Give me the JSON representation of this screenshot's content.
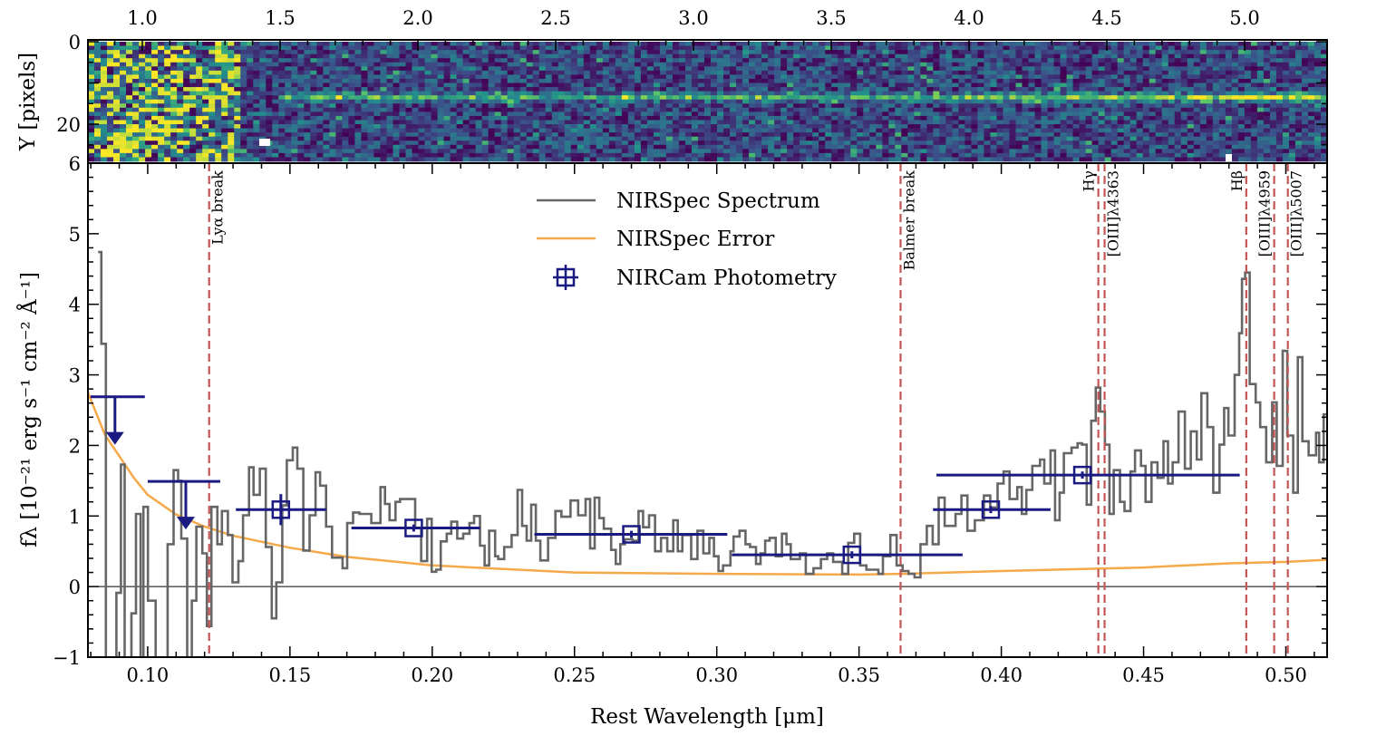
{
  "chart_data": [
    {
      "type": "heatmap",
      "panel": "2D spectrum",
      "ylabel": "Y [pixels]",
      "ylim": [
        0,
        29
      ],
      "y_inverted": true,
      "yticks": [
        "0",
        "20"
      ],
      "top_axis_ticks": [
        "1.0",
        "1.5",
        "2.0",
        "2.5",
        "3.0",
        "3.5",
        "4.0",
        "4.5",
        "5.0"
      ],
      "colormap": "viridis"
    },
    {
      "type": "line",
      "panel": "1D spectrum",
      "xlabel": "Rest Wavelength [μm]",
      "ylabel": "fλ [10⁻²¹ erg s⁻¹ cm⁻² Å⁻¹]",
      "xlim": [
        0.079,
        0.5145
      ],
      "ylim": [
        -1,
        6
      ],
      "xticks": [
        "0.10",
        "0.15",
        "0.20",
        "0.25",
        "0.30",
        "0.35",
        "0.40",
        "0.45",
        "0.50"
      ],
      "yticks": [
        "−1",
        "0",
        "1",
        "2",
        "3",
        "4",
        "5",
        "6"
      ],
      "legend": {
        "placement": "top-center",
        "entries": [
          "NIRSpec Spectrum",
          "NIRSpec Error",
          "NIRCam Photometry"
        ]
      },
      "colors": {
        "spectrum": "#666666",
        "error": "#f5a94a",
        "photometry": "#1a1a82",
        "lines": "#c45555"
      },
      "spectrum": {
        "name": "NIRSpec Spectrum",
        "x": [
          0.0826,
          0.0837,
          0.0853,
          0.089,
          0.0906,
          0.0919,
          0.0943,
          0.0959,
          0.0975,
          0.0985,
          0.1001,
          0.1028,
          0.107,
          0.1091,
          0.1107,
          0.1118,
          0.1139,
          0.1155,
          0.1171,
          0.1192,
          0.1208,
          0.1224,
          0.1245,
          0.1261,
          0.1282,
          0.1298,
          0.1319,
          0.1335,
          0.1356,
          0.1372,
          0.1394,
          0.1415,
          0.1436,
          0.1452,
          0.1473,
          0.1489,
          0.151,
          0.1526,
          0.1547,
          0.1569,
          0.159,
          0.1606,
          0.1627,
          0.1648,
          0.1685,
          0.1701,
          0.1722,
          0.1744,
          0.1786,
          0.1818,
          0.1834,
          0.185,
          0.1871,
          0.1887,
          0.194,
          0.1961,
          0.1982,
          0.1998,
          0.2014,
          0.203,
          0.2051,
          0.2067,
          0.2088,
          0.2109,
          0.2131,
          0.2147,
          0.2168,
          0.2184,
          0.22,
          0.2221,
          0.2232,
          0.2253,
          0.2279,
          0.23,
          0.2316,
          0.2332,
          0.2348,
          0.2364,
          0.238,
          0.2407,
          0.2433,
          0.2454,
          0.2486,
          0.2513,
          0.2539,
          0.2555,
          0.2571,
          0.2587,
          0.2603,
          0.2629,
          0.2645,
          0.2661,
          0.2677,
          0.2704,
          0.2725,
          0.2741,
          0.2762,
          0.2783,
          0.2804,
          0.2826,
          0.2847,
          0.2863,
          0.2879,
          0.291,
          0.2932,
          0.2953,
          0.2974,
          0.299,
          0.3006,
          0.3022,
          0.3048,
          0.3059,
          0.308,
          0.3101,
          0.3117,
          0.3138,
          0.3154,
          0.317,
          0.3186,
          0.3207,
          0.3229,
          0.3245,
          0.326,
          0.3292,
          0.3313,
          0.334,
          0.3366,
          0.3388,
          0.3409,
          0.3441,
          0.3462,
          0.3483,
          0.3504,
          0.3526,
          0.3568,
          0.3584,
          0.361,
          0.3632,
          0.3653,
          0.3674,
          0.3695,
          0.3716,
          0.3738,
          0.3759,
          0.378,
          0.3801,
          0.3823,
          0.3839,
          0.386,
          0.3881,
          0.3907,
          0.3939,
          0.3961,
          0.3987,
          0.4008,
          0.4029,
          0.4056,
          0.4072,
          0.4088,
          0.4109,
          0.4136,
          0.4151,
          0.4173,
          0.4189,
          0.4205,
          0.422,
          0.4247,
          0.4268,
          0.4284,
          0.43,
          0.4316,
          0.4332,
          0.4348,
          0.4364,
          0.438,
          0.4395,
          0.4417,
          0.4433,
          0.4454,
          0.447,
          0.4491,
          0.4507,
          0.4528,
          0.4549,
          0.457,
          0.4586,
          0.4602,
          0.4623,
          0.4645,
          0.4666,
          0.4687,
          0.4703,
          0.4724,
          0.4745,
          0.4767,
          0.4783,
          0.4798,
          0.482,
          0.4836,
          0.4846,
          0.4857,
          0.4873,
          0.4894,
          0.491,
          0.4931,
          0.4952,
          0.4968,
          0.4989,
          0.5005,
          0.5026,
          0.5042,
          0.5058,
          0.508,
          0.5106,
          0.5117,
          0.5133,
          0.515
        ],
        "y": [
          4.74,
          3.44,
          -1.2,
          -0.09,
          1.73,
          -1.2,
          -0.38,
          1.03,
          -1.2,
          1.13,
          -0.2,
          -1.2,
          0.6,
          1.65,
          1.5,
          0.68,
          -1.2,
          -0.2,
          0.85,
          0.47,
          -0.56,
          1.13,
          0.6,
          1.07,
          0.73,
          0.06,
          0.36,
          1.01,
          1.69,
          1.3,
          1.67,
          0.56,
          -0.45,
          0.06,
          1.15,
          1.79,
          1.97,
          1.67,
          0.51,
          1.01,
          1.62,
          1.43,
          0.85,
          0.41,
          0.26,
          0.9,
          1.05,
          1.03,
          0.9,
          1.41,
          1.17,
          0.94,
          1.2,
          1.24,
          0.83,
          0.36,
          0.96,
          0.21,
          0.24,
          0.64,
          0.75,
          0.92,
          0.68,
          0.75,
          0.9,
          1.0,
          0.58,
          0.3,
          0.79,
          0.43,
          0.39,
          0.56,
          0.73,
          1.37,
          0.86,
          0.65,
          1.16,
          0.65,
          0.37,
          0.69,
          1.07,
          0.99,
          1.22,
          1.01,
          1.24,
          0.54,
          1.26,
          0.97,
          0.82,
          0.52,
          0.32,
          0.6,
          0.67,
          0.65,
          1.07,
          0.84,
          1.01,
          0.5,
          0.69,
          0.5,
          0.94,
          0.5,
          0.73,
          0.39,
          0.79,
          0.47,
          0.69,
          0.43,
          0.22,
          0.3,
          0.5,
          0.71,
          0.79,
          0.6,
          0.56,
          0.32,
          0.47,
          0.65,
          0.69,
          0.43,
          0.75,
          0.6,
          0.39,
          0.47,
          0.18,
          0.26,
          0.39,
          0.47,
          0.35,
          0.18,
          0.62,
          0.75,
          0.3,
          0.24,
          0.18,
          0.43,
          0.73,
          0.3,
          0.22,
          0.18,
          0.13,
          0.6,
          0.86,
          0.6,
          1.26,
          0.86,
          0.86,
          1.03,
          1.29,
          0.79,
          0.94,
          1.29,
          1.12,
          1.46,
          1.63,
          1.24,
          1.41,
          1.03,
          1.37,
          1.71,
          1.8,
          1.46,
          1.93,
          0.94,
          1.33,
          1.89,
          1.97,
          2.03,
          2.01,
          1.16,
          2.35,
          2.82,
          2.48,
          2.01,
          1.03,
          1.65,
          1.2,
          1.07,
          1.63,
          1.93,
          1.71,
          1.2,
          1.76,
          1.54,
          2.06,
          1.46,
          1.76,
          2.48,
          1.67,
          2.2,
          1.8,
          2.74,
          2.26,
          1.33,
          2.01,
          2.53,
          2.14,
          3.0,
          3.59,
          4.36,
          4.45,
          2.87,
          2.61,
          2.26,
          1.76,
          2.61,
          1.71,
          3.34,
          2.14,
          1.33,
          3.25,
          2.06,
          1.86,
          2.18,
          1.76,
          2.44,
          2.44
        ]
      },
      "error": {
        "name": "NIRSpec Error",
        "x": [
          0.079,
          0.085,
          0.09,
          0.095,
          0.1,
          0.11,
          0.12,
          0.13,
          0.15,
          0.17,
          0.2,
          0.25,
          0.3,
          0.35,
          0.365,
          0.4,
          0.45,
          0.48,
          0.5,
          0.5145
        ],
        "y": [
          2.75,
          2.15,
          1.85,
          1.55,
          1.3,
          1.02,
          0.85,
          0.72,
          0.55,
          0.42,
          0.3,
          0.2,
          0.18,
          0.17,
          0.18,
          0.22,
          0.27,
          0.33,
          0.35,
          0.38
        ]
      },
      "photometry": {
        "name": "NIRCam Photometry",
        "points": [
          {
            "x": 0.1468,
            "y": 1.09,
            "xlo": 0.131,
            "xhi": 0.1627,
            "yerr": 0.22
          },
          {
            "x": 0.1935,
            "y": 0.83,
            "xlo": 0.1716,
            "xhi": 0.2168,
            "yerr": 0.05
          },
          {
            "x": 0.27,
            "y": 0.74,
            "xlo": 0.2359,
            "xhi": 0.3037,
            "yerr": 0.05
          },
          {
            "x": 0.3475,
            "y": 0.45,
            "xlo": 0.3053,
            "xhi": 0.3864,
            "yerr": 0.05
          },
          {
            "x": 0.3963,
            "y": 1.09,
            "xlo": 0.376,
            "xhi": 0.4173,
            "yerr": 0.05
          },
          {
            "x": 0.4285,
            "y": 1.58,
            "xlo": 0.3772,
            "xhi": 0.4838,
            "yerr": 0.05
          }
        ],
        "upper_limits": [
          {
            "x": 0.0885,
            "y": 2.69,
            "xlo": 0.0799,
            "xhi": 0.099
          },
          {
            "x": 0.1134,
            "y": 1.49,
            "xlo": 0.1,
            "xhi": 0.1255
          }
        ]
      },
      "reference_lines": [
        {
          "x": 0.1216,
          "label": "Lyα break",
          "side": "right"
        },
        {
          "x": 0.3646,
          "label": "Balmer break",
          "side": "right"
        },
        {
          "x": 0.4341,
          "label": "Hγ",
          "side": "left"
        },
        {
          "x": 0.4363,
          "label": "[OIII]λ4363",
          "side": "right"
        },
        {
          "x": 0.4861,
          "label": "Hβ",
          "side": "left"
        },
        {
          "x": 0.4959,
          "label": "[OIII]λ4959",
          "side": "left"
        },
        {
          "x": 0.5007,
          "label": "[OIII]λ5007",
          "side": "right"
        }
      ]
    }
  ]
}
